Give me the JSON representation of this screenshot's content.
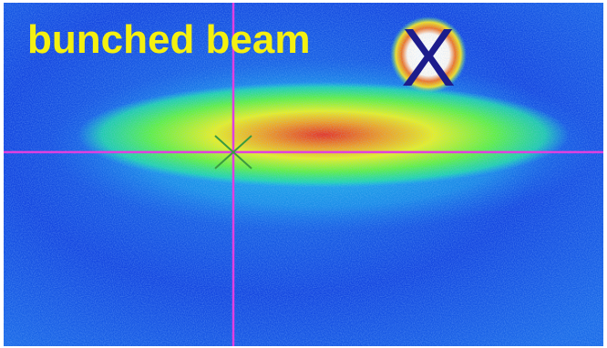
{
  "label": "bunched beam",
  "marker": "X"
}
